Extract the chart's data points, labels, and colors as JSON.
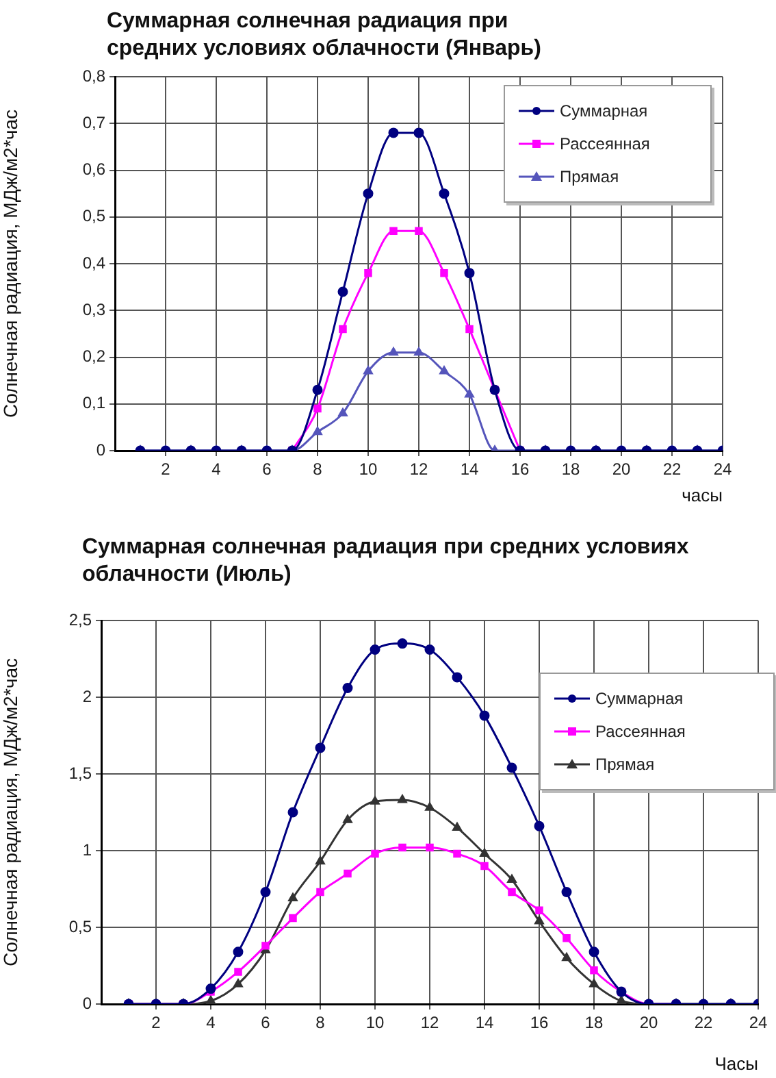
{
  "chart_data": [
    {
      "type": "line",
      "title": "Суммарная солнечная радиация при средних условиях облачности (Январь)",
      "xlabel": "часы",
      "ylabel": "Солнечная радиация, МДж/м2*час",
      "x": [
        1,
        2,
        3,
        4,
        5,
        6,
        7,
        8,
        9,
        10,
        11,
        12,
        13,
        14,
        15,
        16,
        17,
        18,
        19,
        20,
        21,
        22,
        23,
        24
      ],
      "series": [
        {
          "name": "Суммарная",
          "color": "#000080",
          "marker": "circle",
          "values": [
            0,
            0,
            0,
            0,
            0,
            0,
            0,
            0.13,
            0.34,
            0.55,
            0.68,
            0.68,
            0.55,
            0.38,
            0.13,
            0,
            0,
            0,
            0,
            0,
            0,
            0,
            0,
            0
          ]
        },
        {
          "name": "Рассеянная",
          "color": "#ff00ff",
          "marker": "square",
          "values": [
            null,
            null,
            null,
            null,
            null,
            null,
            0,
            0.09,
            0.26,
            0.38,
            0.47,
            0.47,
            0.38,
            0.26,
            0.13,
            0,
            null,
            null,
            null,
            null,
            null,
            null,
            null,
            null
          ]
        },
        {
          "name": "Прямая",
          "color": "#5555bb",
          "marker": "triangle",
          "values": [
            0,
            0,
            0,
            0,
            0,
            0,
            0,
            0.04,
            0.08,
            0.17,
            0.21,
            0.21,
            0.17,
            0.12,
            0,
            0,
            0,
            0,
            0,
            0,
            0,
            0,
            0,
            0
          ]
        }
      ],
      "xlim": [
        0,
        24
      ],
      "xticks": [
        2,
        4,
        6,
        8,
        10,
        12,
        14,
        16,
        18,
        20,
        22,
        24
      ],
      "ylim": [
        0,
        0.8
      ],
      "yticks": [
        0,
        {
          "value": 0.1,
          "label": "0,1"
        },
        {
          "value": 0.2,
          "label": "0,2"
        },
        {
          "value": 0.3,
          "label": "0,3"
        },
        {
          "value": 0.4,
          "label": "0,4"
        },
        {
          "value": 0.5,
          "label": "0,5"
        },
        {
          "value": 0.6,
          "label": "0,6"
        },
        {
          "value": 0.7,
          "label": "0,7"
        },
        {
          "value": 0.8,
          "label": "0,8"
        }
      ],
      "grid": true,
      "legend": "top right"
    },
    {
      "type": "line",
      "title": "Суммарная солнечная радиация при средних условиях облачности (Июль)",
      "xlabel": "Часы",
      "ylabel": "Солнечная радиация, МДж/м2*час",
      "x": [
        1,
        2,
        3,
        4,
        5,
        6,
        7,
        8,
        9,
        10,
        11,
        12,
        13,
        14,
        15,
        16,
        17,
        18,
        19,
        20,
        21,
        22,
        23,
        24
      ],
      "series": [
        {
          "name": "Суммарная",
          "color": "#000080",
          "marker": "circle",
          "values": [
            0,
            0,
            0,
            0.1,
            0.34,
            0.73,
            1.25,
            1.67,
            2.06,
            2.31,
            2.35,
            2.31,
            2.13,
            1.88,
            1.54,
            1.16,
            0.73,
            0.34,
            0.08,
            0,
            0,
            0,
            0,
            0
          ]
        },
        {
          "name": "Рассеянная",
          "color": "#ff00ff",
          "marker": "square",
          "values": [
            0,
            0,
            0,
            0.08,
            0.21,
            0.38,
            0.56,
            0.73,
            0.85,
            0.98,
            1.02,
            1.02,
            0.98,
            0.9,
            0.73,
            0.61,
            0.43,
            0.22,
            0.08,
            0,
            0,
            null,
            null,
            null
          ]
        },
        {
          "name": "Прямая",
          "color": "#333333",
          "marker": "triangle",
          "values": [
            0,
            0,
            0,
            0.02,
            0.13,
            0.35,
            0.69,
            0.93,
            1.2,
            1.32,
            1.33,
            1.28,
            1.15,
            0.98,
            0.81,
            0.54,
            0.3,
            0.13,
            0.02,
            0,
            0,
            0,
            0,
            0
          ]
        }
      ],
      "xlim": [
        0,
        24
      ],
      "xticks": [
        2,
        4,
        6,
        8,
        10,
        12,
        14,
        16,
        18,
        20,
        22,
        24
      ],
      "ylim": [
        0,
        2.5
      ],
      "yticks": [
        0,
        {
          "value": 0.5,
          "label": "0,5"
        },
        1,
        {
          "value": 1.5,
          "label": "1,5"
        },
        2,
        {
          "value": 2.5,
          "label": "2,5"
        }
      ],
      "grid": true,
      "legend": "right"
    }
  ]
}
